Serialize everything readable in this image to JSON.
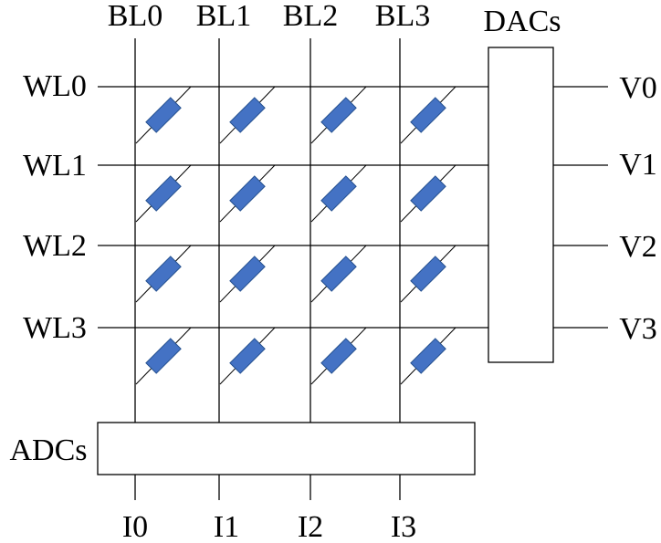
{
  "colors": {
    "memristor_fill": "#4472c4",
    "memristor_stroke": "#24508f",
    "line": "#000000"
  },
  "bit_lines": [
    "BL0",
    "BL1",
    "BL2",
    "BL3"
  ],
  "word_lines": [
    "WL0",
    "WL1",
    "WL2",
    "WL3"
  ],
  "voltage_outputs": [
    "V0",
    "V1",
    "V2",
    "V3"
  ],
  "current_outputs": [
    "I0",
    "I1",
    "I2",
    "I3"
  ],
  "dac_label": "DACs",
  "adc_label": "ADCs",
  "cell_icon": "memristor-icon"
}
